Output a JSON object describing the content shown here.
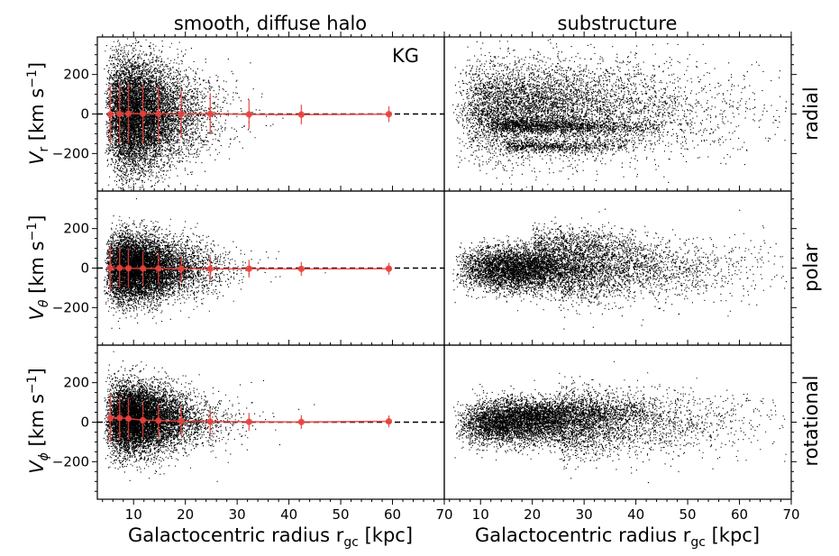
{
  "chart_data": {
    "type": "scatter",
    "columns": [
      "smooth, diffuse halo",
      "substructure"
    ],
    "rows": [
      {
        "key": "radial",
        "row_label": "radial",
        "ylabel_sym": "V",
        "ylabel_sub": "r",
        "ylabel_unit": " [km s",
        "ylabel_exp": "−1",
        "ylabel_close": "]"
      },
      {
        "key": "polar",
        "row_label": "polar",
        "ylabel_sym": "V",
        "ylabel_sub": "θ",
        "ylabel_unit": " [km s",
        "ylabel_exp": "−1",
        "ylabel_close": "]"
      },
      {
        "key": "rotational",
        "row_label": "rotational",
        "ylabel_sym": "V",
        "ylabel_sub": "ϕ",
        "ylabel_unit": " [km s",
        "ylabel_exp": "−1",
        "ylabel_close": "]"
      }
    ],
    "annotation": "KG",
    "xlabel_main": "Galactocentric radius r",
    "xlabel_sub": "gc",
    "xlabel_unit": " [kpc]",
    "xlim": [
      3,
      70
    ],
    "ylim": [
      -390,
      390
    ],
    "xticks": [
      10,
      20,
      30,
      40,
      50,
      60,
      70
    ],
    "yticks": [
      -200,
      0,
      200
    ],
    "ytick_labels": [
      "−200",
      "0",
      "200"
    ],
    "zero_line": "dashed black at y = 0",
    "binned_profile": {
      "color": "#e8413c",
      "panel_column": "smooth, diffuse halo",
      "x": [
        5.5,
        7.3,
        9.0,
        11.8,
        14.8,
        19.2,
        24.8,
        32.3,
        42.4,
        59.3
      ],
      "radial": {
        "mean": [
          -2,
          0,
          2,
          1,
          1,
          0,
          1,
          -2,
          -3,
          -1
        ],
        "err": [
          145,
          150,
          150,
          150,
          140,
          120,
          105,
          75,
          50,
          40
        ]
      },
      "polar": {
        "mean": [
          0,
          1,
          -1,
          -2,
          -2,
          -3,
          -4,
          -3,
          -4,
          -3
        ],
        "err": [
          110,
          100,
          100,
          85,
          80,
          70,
          60,
          45,
          35,
          30
        ]
      },
      "rotational": {
        "mean": [
          20,
          22,
          18,
          10,
          8,
          5,
          3,
          2,
          1,
          4
        ],
        "err": [
          120,
          110,
          105,
          90,
          85,
          75,
          60,
          45,
          35,
          30
        ]
      }
    },
    "scatter_description": {
      "smooth": {
        "radial": {
          "r_mode": 10,
          "sigma0": 150,
          "sigma_far": 70
        },
        "polar": {
          "r_mode": 10,
          "sigma0": 85,
          "sigma_far": 55
        },
        "rotational": {
          "r_mode": 10,
          "sigma0": 90,
          "mean0": 20,
          "sigma_far": 55
        }
      },
      "sub": {
        "radial": {
          "r_mode": 18,
          "note": "broad cloud with streams near -60 and -160"
        },
        "polar": {
          "r_mode": 18,
          "note": "dense core near 0 with extension to +150 at r 25-35"
        },
        "rotational": {
          "r_mode": 18,
          "note": "dense core near 0 with band near +50"
        }
      }
    }
  }
}
